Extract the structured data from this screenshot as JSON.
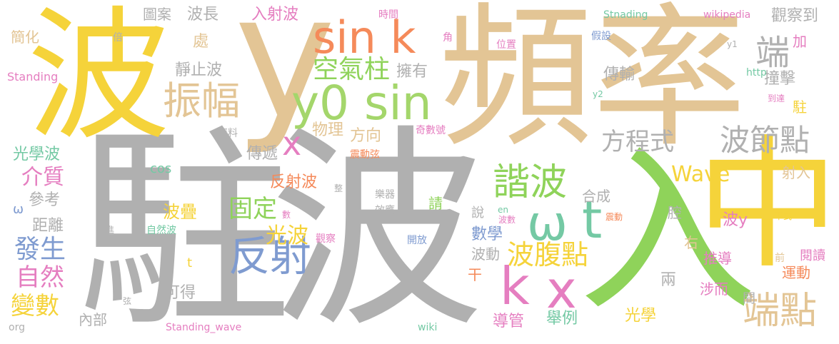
{
  "colors": {
    "background": "#ffffff",
    "gray": "#b0b0b0",
    "yellow": "#f5d33a",
    "tan": "#e3c595",
    "green": "#8fd35a",
    "orange": "#f58a5a",
    "blue": "#7f9bd0",
    "teal": "#74c9a4",
    "pink": "#e57ec0",
    "lime": "#a4d66b",
    "lightgray": "#c8c8c8"
  },
  "words": [
    "駐波",
    "頻率",
    "y",
    "入",
    "中",
    "波",
    "sin k",
    "y0 sin",
    "振幅",
    "ω",
    "t",
    "k",
    "x",
    "諧波",
    "反射",
    "端點",
    "波節點",
    "波腹點",
    "空氣柱",
    "方程式",
    "端",
    "Wave",
    "自然",
    "變數",
    "發生",
    "介質",
    "固定",
    "光波",
    "波疊",
    "反射波",
    "傳遞",
    "物理",
    "方向",
    "靜止波",
    "處",
    "擁有",
    "撞擊",
    "觀察到",
    "傳輸",
    "圖案",
    "波長",
    "入射波",
    "簡化",
    "Standing",
    "光學波",
    "參考",
    "距離",
    "ω",
    "可得",
    "內部",
    "合成",
    "數學",
    "說",
    "波動",
    "推導",
    "運動",
    "涉而",
    "兩",
    "間",
    "光學",
    "舉例",
    "導管",
    "干",
    "請",
    "射入",
    "右",
    "腔",
    "波y",
    "駐",
    "加",
    "下式",
    "前",
    "閱讀",
    "y1",
    "y2",
    "http",
    "到達",
    "假設",
    "位置",
    "角",
    "時間",
    "倍",
    "資料",
    "奇數號",
    "震動弦",
    "樂器",
    "效應",
    "wikipedia",
    "Stnading",
    "en",
    "wiki",
    "開放",
    "觀察",
    "自然波",
    "進",
    "弦",
    "數",
    "整",
    "cos",
    "Standing_wave",
    "org",
    "波數",
    "震動",
    "t",
    "x"
  ]
}
